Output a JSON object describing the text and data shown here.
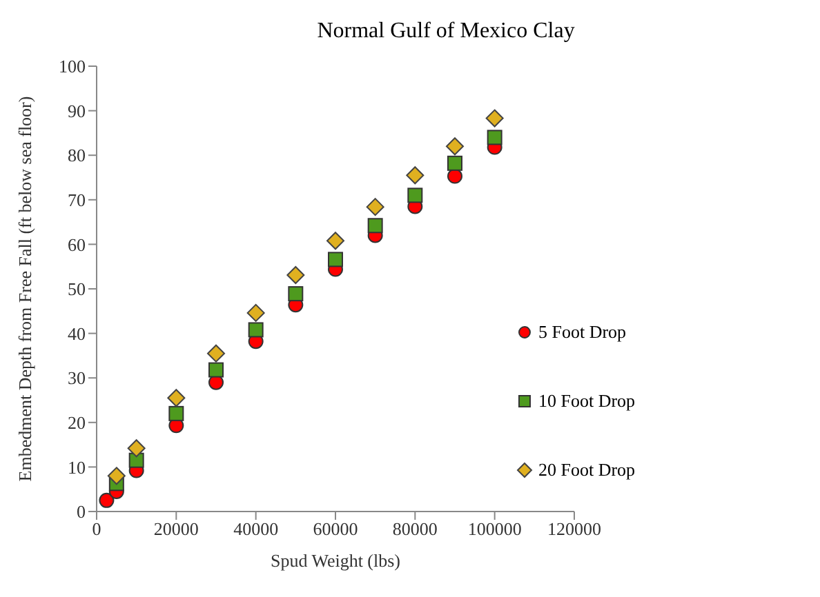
{
  "chart_data": {
    "type": "scatter",
    "title": "Normal Gulf of Mexico Clay",
    "xlabel": "Spud Weight (lbs)",
    "ylabel": "Embedment Depth from Free Fall (ft below sea floor)",
    "xlim": [
      0,
      120000
    ],
    "xticks": [
      0,
      20000,
      40000,
      60000,
      80000,
      100000,
      120000
    ],
    "ylim": [
      0,
      100
    ],
    "yticks": [
      0,
      10,
      20,
      30,
      40,
      50,
      60,
      70,
      80,
      90,
      100
    ],
    "grid": false,
    "legend": "right",
    "series": [
      {
        "name": "5 Foot Drop",
        "color": "#ff0000",
        "marker": "circle",
        "x": [
          2500,
          5000,
          10000,
          20000,
          30000,
          40000,
          50000,
          60000,
          70000,
          80000,
          90000,
          100000
        ],
        "values": [
          2.5,
          4.5,
          9.2,
          19.3,
          29,
          38.2,
          46.4,
          54.4,
          62,
          68.5,
          75.3,
          81.8
        ]
      },
      {
        "name": "10 Foot Drop",
        "color": "#4e9a1e",
        "marker": "square",
        "x": [
          5000,
          10000,
          20000,
          30000,
          40000,
          50000,
          60000,
          70000,
          80000,
          90000,
          100000
        ],
        "values": [
          6.3,
          11.5,
          22,
          31.8,
          40.8,
          48.9,
          56.6,
          64.2,
          71,
          78.2,
          84
        ]
      },
      {
        "name": "20 Foot Drop",
        "color": "#e0b020",
        "marker": "diamond",
        "x": [
          5000,
          10000,
          20000,
          30000,
          40000,
          50000,
          60000,
          70000,
          80000,
          90000,
          100000
        ],
        "values": [
          8,
          14.2,
          25.5,
          35.5,
          44.6,
          53.1,
          60.8,
          68.4,
          75.5,
          82,
          88.3
        ]
      }
    ]
  }
}
